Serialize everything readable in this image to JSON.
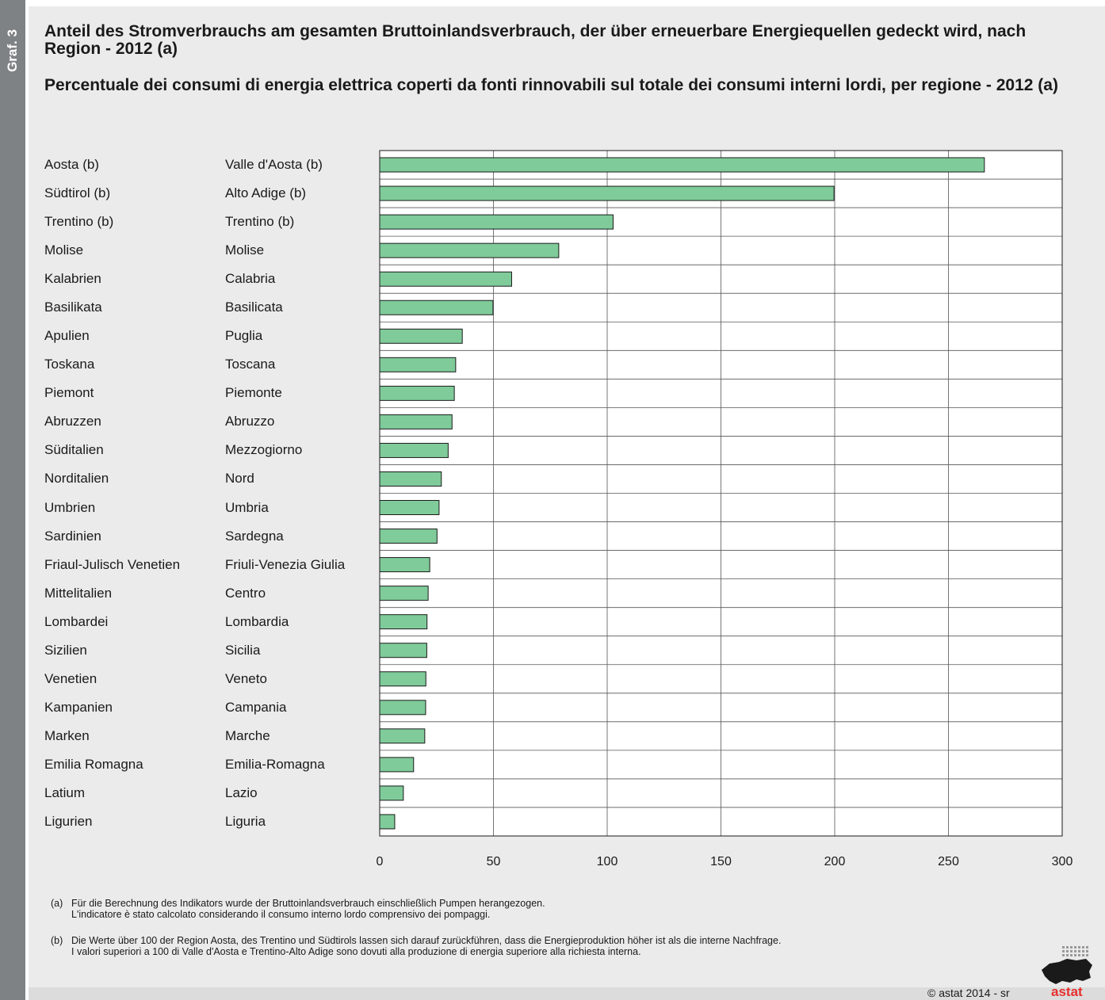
{
  "side_tag": "Graf. 3",
  "title_de": "Anteil des Stromverbrauchs am gesamten Bruttoinlandsverbrauch, der über erneuerbare Energiequellen gedeckt wird, nach Region - 2012 (a)",
  "title_it": "Percentuale dei consumi di energia elettrica coperti da fonti rinnovabili sul totale dei consumi interni lordi, per regione - 2012 (a)",
  "chart_data": {
    "type": "bar",
    "orientation": "horizontal",
    "categories_de": [
      "Aosta (b)",
      "Südtirol (b)",
      "Trentino (b)",
      "Molise",
      "Kalabrien",
      "Basilikata",
      "Apulien",
      "Toskana",
      "Piemont",
      "Abruzzen",
      "Süditalien",
      "Norditalien",
      "Umbrien",
      "Sardinien",
      "Friaul-Julisch Venetien",
      "Mittelitalien",
      "Lombardei",
      "Sizilien",
      "Venetien",
      "Kampanien",
      "Marken",
      "Emilia Romagna",
      "Latium",
      "Ligurien"
    ],
    "categories_it": [
      "Valle d'Aosta (b)",
      "Alto Adige (b)",
      "Trentino (b)",
      "Molise",
      "Calabria",
      "Basilicata",
      "Puglia",
      "Toscana",
      "Piemonte",
      "Abruzzo",
      "Mezzogiorno",
      "Nord",
      "Umbria",
      "Sardegna",
      "Friuli-Venezia Giulia",
      "Centro",
      "Lombardia",
      "Sicilia",
      "Veneto",
      "Campania",
      "Marche",
      "Emilia-Romagna",
      "Lazio",
      "Liguria"
    ],
    "values": [
      265.8,
      199.7,
      102.6,
      78.7,
      58.0,
      49.8,
      36.3,
      33.4,
      32.8,
      31.8,
      30.1,
      27.1,
      26.1,
      25.2,
      22.0,
      21.3,
      20.8,
      20.7,
      20.3,
      20.2,
      19.8,
      14.9,
      10.4,
      6.6
    ],
    "xlim": [
      0,
      300
    ],
    "xticks": [
      0,
      50,
      100,
      150,
      200,
      250,
      300
    ],
    "grid": true,
    "bar_color": "#7fcb9a"
  },
  "footnotes": [
    {
      "marker": "(a)",
      "lines": [
        "Für die Berechnung des Indikators wurde der Bruttoinlandsverbrauch einschließlich Pumpen herangezogen.",
        "L'indicatore è stato calcolato considerando il consumo interno lordo comprensivo dei pompaggi."
      ]
    },
    {
      "marker": "(b)",
      "lines": [
        "Die Werte über 100 der Region Aosta, des Trentino und Südtirols lassen sich darauf zurückführen, dass die Energieproduktion höher ist als die interne Nachfrage.",
        "I valori superiori a 100 di Valle d'Aosta e Trentino-Alto Adige sono dovuti alla produzione di energia superiore alla richiesta interna."
      ]
    }
  ],
  "copyright": "© astat 2014 - sr",
  "logo_text": "astat"
}
